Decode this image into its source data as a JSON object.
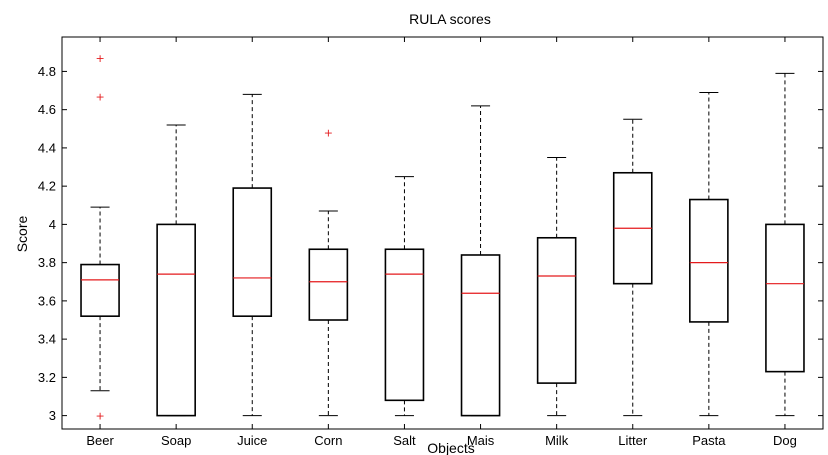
{
  "chart_data": {
    "type": "boxplot",
    "title": "RULA scores",
    "xlabel": "Objects",
    "ylabel": "Score",
    "ylim": [
      2.93,
      4.98
    ],
    "yticks": [
      3,
      3.2,
      3.4,
      3.6,
      3.8,
      4,
      4.2,
      4.4,
      4.6,
      4.8
    ],
    "ytick_labels": [
      "3",
      "3.2",
      "3.4",
      "3.6",
      "3.8",
      "4",
      "4.2",
      "4.4",
      "4.6",
      "4.8"
    ],
    "grid": false,
    "outlier_marker": "+",
    "colors": {
      "box": "#000000",
      "median": "#e41a1c",
      "outlier": "#e41a1c"
    },
    "categories": [
      "Beer",
      "Soap",
      "Juice",
      "Corn",
      "Salt",
      "Mais",
      "Milk",
      "Litter",
      "Pasta",
      "Dog"
    ],
    "boxes": [
      {
        "category": "Beer",
        "whislo": 3.13,
        "q1": 3.52,
        "med": 3.71,
        "q3": 3.79,
        "whishi": 4.09,
        "fliers": [
          4.87,
          4.67,
          3.0
        ]
      },
      {
        "category": "Soap",
        "whislo": 3.0,
        "q1": 3.0,
        "med": 3.74,
        "q3": 4.0,
        "whishi": 4.52,
        "fliers": []
      },
      {
        "category": "Juice",
        "whislo": 3.0,
        "q1": 3.52,
        "med": 3.72,
        "q3": 4.19,
        "whishi": 4.68,
        "fliers": []
      },
      {
        "category": "Corn",
        "whislo": 3.0,
        "q1": 3.5,
        "med": 3.7,
        "q3": 3.87,
        "whishi": 4.07,
        "fliers": [
          4.48
        ]
      },
      {
        "category": "Salt",
        "whislo": 3.0,
        "q1": 3.08,
        "med": 3.74,
        "q3": 3.87,
        "whishi": 4.25,
        "fliers": []
      },
      {
        "category": "Mais",
        "whislo": 3.0,
        "q1": 3.0,
        "med": 3.64,
        "q3": 3.84,
        "whishi": 4.62,
        "fliers": []
      },
      {
        "category": "Milk",
        "whislo": 3.0,
        "q1": 3.17,
        "med": 3.73,
        "q3": 3.93,
        "whishi": 4.35,
        "fliers": []
      },
      {
        "category": "Litter",
        "whislo": 3.0,
        "q1": 3.69,
        "med": 3.98,
        "q3": 4.27,
        "whishi": 4.55,
        "fliers": []
      },
      {
        "category": "Pasta",
        "whislo": 3.0,
        "q1": 3.49,
        "med": 3.8,
        "q3": 4.13,
        "whishi": 4.69,
        "fliers": []
      },
      {
        "category": "Dog",
        "whislo": 3.0,
        "q1": 3.23,
        "med": 3.69,
        "q3": 4.0,
        "whishi": 4.79,
        "fliers": []
      }
    ]
  }
}
